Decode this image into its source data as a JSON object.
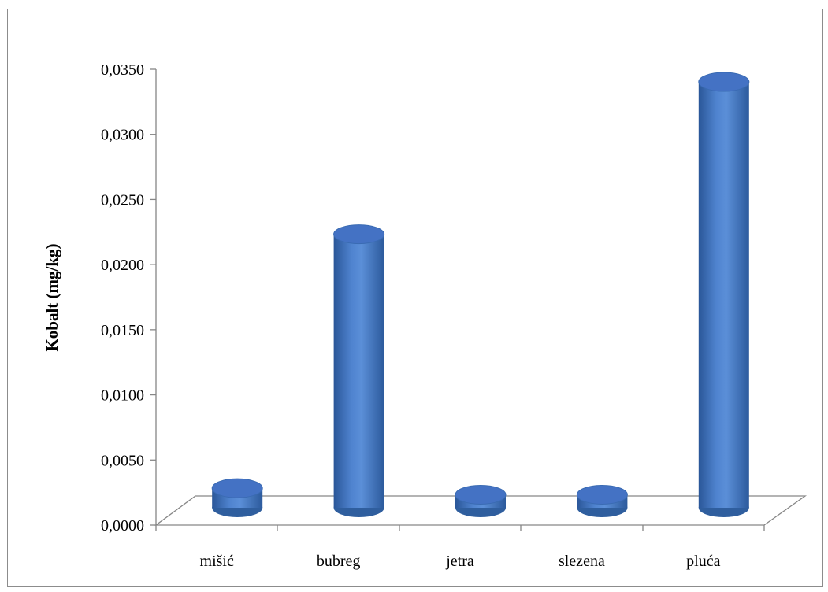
{
  "chart_data": {
    "type": "bar",
    "style": "3d-cylinder",
    "categories": [
      "mišić",
      "bubreg",
      "jetra",
      "slezena",
      "pluća"
    ],
    "series": [
      {
        "values": [
          0.0015,
          0.021,
          0.001,
          0.001,
          0.0327
        ],
        "color": "#4472C4"
      }
    ],
    "ylabel": "Kobalt (mg/kg)",
    "xlabel": "",
    "ylim": [
      0,
      0.035
    ],
    "yticks": [
      "0,0000",
      "0,0050",
      "0,0100",
      "0,0150",
      "0,0200",
      "0,0250",
      "0,0300",
      "0,0350"
    ],
    "grid": false,
    "legend": "none"
  }
}
